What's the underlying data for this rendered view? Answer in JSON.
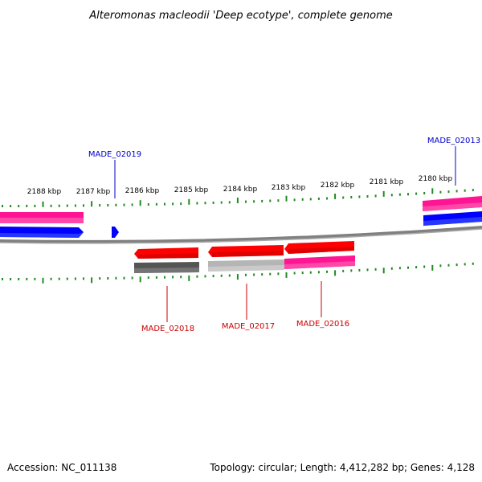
{
  "title": "Alteromonas macleodii 'Deep ecotype', complete genome",
  "footer": {
    "accession": "Accession: NC_011138",
    "summary": "Topology: circular; Length: 4,412,282 bp; Genes: 4,128"
  },
  "colors": {
    "background": "#ffffff",
    "backbone": "#808080",
    "ticks": "#228b22",
    "plus_strand_cds": "#0000ff",
    "plus_strand_feature": "#ff1493",
    "minus_strand_cds": "#ff0000",
    "minus_strand_feature_dark": "#555555",
    "minus_strand_feature_light": "#b5b5b5",
    "plus_label": "#0000cc",
    "minus_label": "#cc0000"
  },
  "chart_data": {
    "type": "genome-map-linear-view",
    "unit": "kbp",
    "scale_ticks": [
      {
        "label": "2188 kbp"
      },
      {
        "label": "2187 kbp"
      },
      {
        "label": "2186 kbp"
      },
      {
        "label": "2185 kbp"
      },
      {
        "label": "2184 kbp"
      },
      {
        "label": "2183 kbp"
      },
      {
        "label": "2182 kbp"
      },
      {
        "label": "2181 kbp"
      },
      {
        "label": "2180 kbp"
      }
    ],
    "labeled_genes": [
      {
        "name": "MADE_02019",
        "strand": "+"
      },
      {
        "name": "MADE_02013",
        "strand": "+"
      },
      {
        "name": "MADE_02018",
        "strand": "-"
      },
      {
        "name": "MADE_02017",
        "strand": "-"
      },
      {
        "name": "MADE_02016",
        "strand": "-"
      }
    ]
  }
}
